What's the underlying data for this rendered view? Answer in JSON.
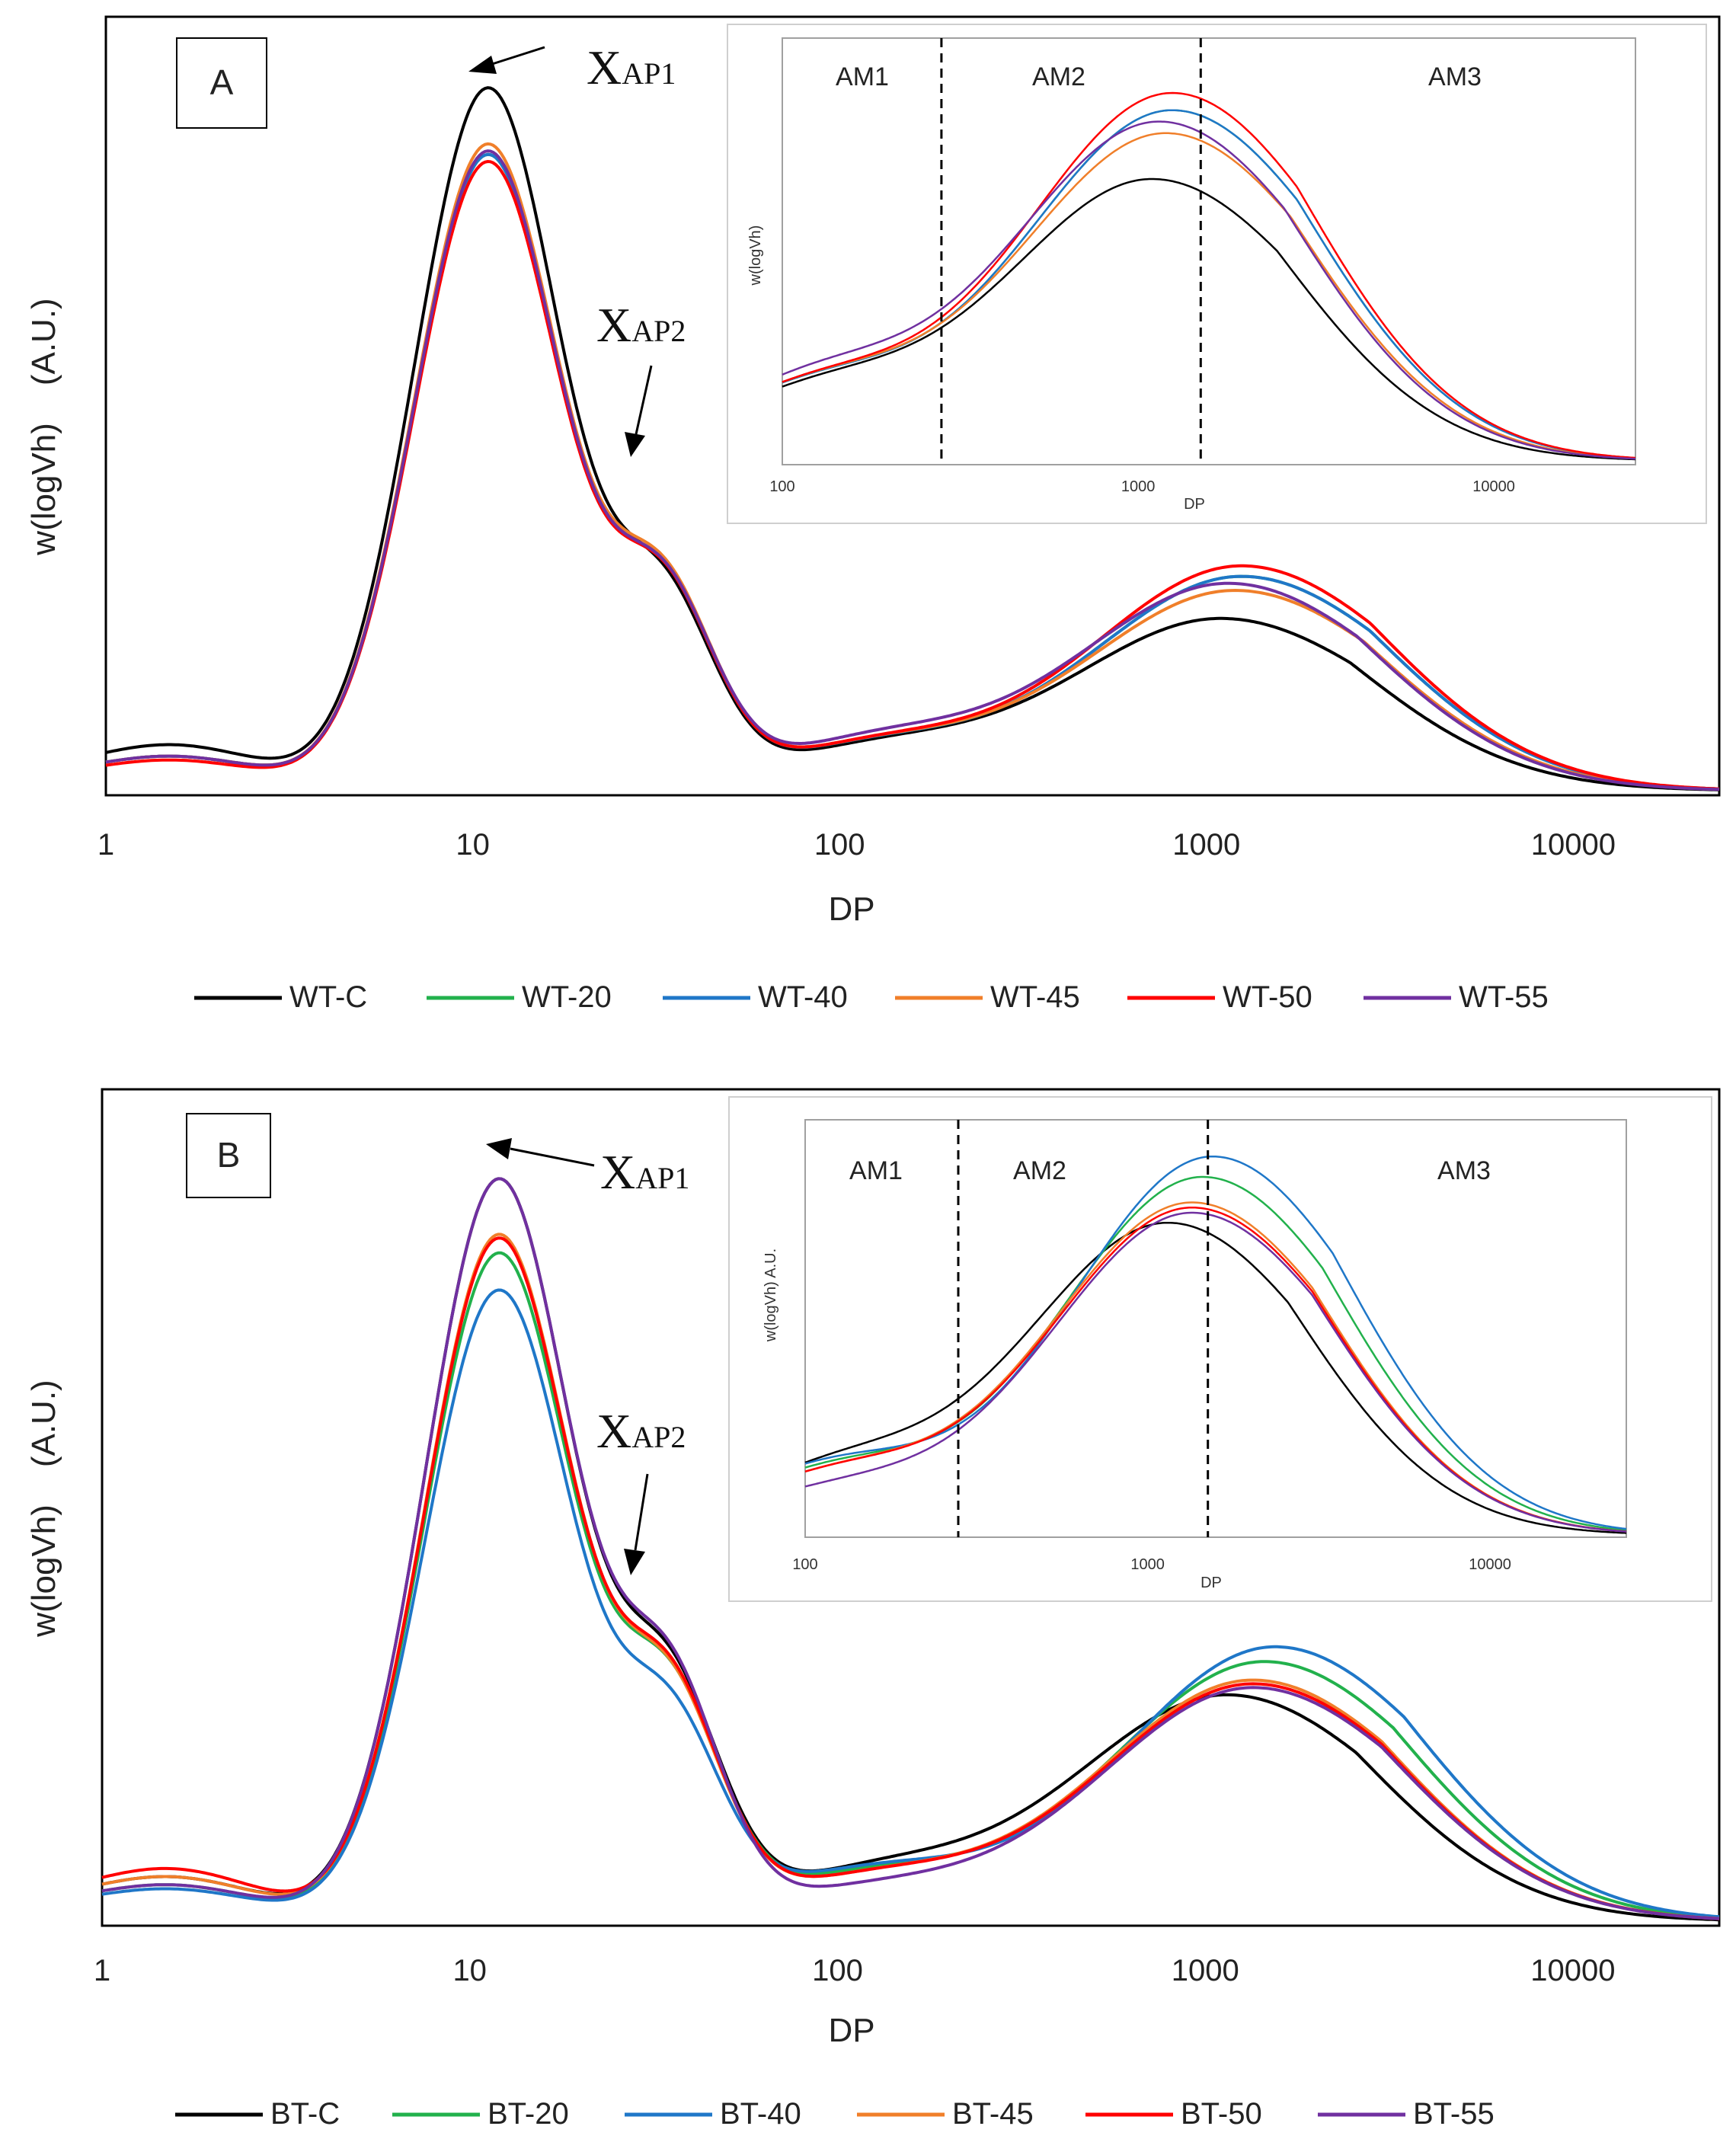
{
  "figure": {
    "panels": [
      {
        "id": "A",
        "panel_label": "A",
        "xlabel": "DP",
        "ylabel": "w(logVh)    (A.U.)",
        "annotations": [
          {
            "main": "X",
            "sub": "AP1"
          },
          {
            "main": "X",
            "sub": "AP2"
          }
        ],
        "legend": [
          "WT-C",
          "WT-20",
          "WT-40",
          "WT-45",
          "WT-50",
          "WT-55"
        ],
        "inset": {
          "xlabel": "DP",
          "ylabel": "w(logVh)",
          "x_ticks": [
            "100",
            "1000",
            "10000"
          ],
          "regions": [
            "AM1",
            "AM2",
            "AM3"
          ]
        }
      },
      {
        "id": "B",
        "panel_label": "B",
        "xlabel": "DP",
        "ylabel": "w(logVh)    (A.U.)",
        "annotations": [
          {
            "main": "X",
            "sub": "AP1"
          },
          {
            "main": "X",
            "sub": "AP2"
          }
        ],
        "legend": [
          "BT-C",
          "BT-20",
          "BT-40",
          "BT-45",
          "BT-50",
          "BT-55"
        ],
        "inset": {
          "xlabel": "DP",
          "ylabel": "w(logVh) A.U.",
          "x_ticks": [
            "100",
            "1000",
            "10000"
          ],
          "regions": [
            "AM1",
            "AM2",
            "AM3"
          ]
        }
      }
    ]
  },
  "chart_data": [
    {
      "type": "line",
      "title": "A",
      "xlabel": "DP",
      "ylabel": "w(logVh) (A.U.)",
      "xscale": "log",
      "xlim": [
        1,
        25000
      ],
      "ylim": [
        0,
        1.05
      ],
      "x_ticks": [
        "1",
        "10",
        "100",
        "1000",
        "10000"
      ],
      "legend_position": "bottom",
      "shape": {
        "ap1": {
          "center_dp": 11,
          "width_decades": 0.2
        },
        "ap2": {
          "center_dp": 33,
          "width_decades": 0.14
        },
        "low_plateau": {
          "center_dp": 1.5,
          "width_decades": 0.2
        },
        "mid": {
          "center_dp": 120,
          "width_decades": 0.3
        },
        "amylose": {
          "width_decades": 0.42,
          "right_skew_decades": 0.12
        }
      },
      "series": [
        {
          "name": "WT-C",
          "color": "#000000",
          "ap1_peak": 1.0,
          "ap2": 0.255,
          "plateau": 0.06,
          "mid": 0.055,
          "amylose_peak": 0.245,
          "amylose_center_dp": 1100
        },
        {
          "name": "WT-20",
          "color": "#22b14c",
          "ap1_peak": 0.905,
          "ap2": 0.265,
          "plateau": 0.045,
          "mid": 0.06,
          "amylose_peak": 0.305,
          "amylose_center_dp": 1250
        },
        {
          "name": "WT-40",
          "color": "#1f77c8",
          "ap1_peak": 0.905,
          "ap2": 0.265,
          "plateau": 0.045,
          "mid": 0.06,
          "amylose_peak": 0.305,
          "amylose_center_dp": 1250
        },
        {
          "name": "WT-45",
          "color": "#f07f2a",
          "ap1_peak": 0.92,
          "ap2": 0.27,
          "plateau": 0.045,
          "mid": 0.06,
          "amylose_peak": 0.285,
          "amylose_center_dp": 1200
        },
        {
          "name": "WT-50",
          "color": "#ff0000",
          "ap1_peak": 0.895,
          "ap2": 0.265,
          "plateau": 0.04,
          "mid": 0.06,
          "amylose_peak": 0.32,
          "amylose_center_dp": 1250
        },
        {
          "name": "WT-55",
          "color": "#7030a0",
          "ap1_peak": 0.91,
          "ap2": 0.265,
          "plateau": 0.045,
          "mid": 0.065,
          "amylose_peak": 0.295,
          "amylose_center_dp": 1150
        }
      ]
    },
    {
      "type": "line",
      "title": "B",
      "xlabel": "DP",
      "ylabel": "w(logVh) (A.U.)",
      "xscale": "log",
      "xlim": [
        1,
        25000
      ],
      "ylim": [
        0,
        1.05
      ],
      "x_ticks": [
        "1",
        "10",
        "100",
        "1000",
        "10000"
      ],
      "legend_position": "bottom",
      "shape": {
        "ap1": {
          "center_dp": 12,
          "width_decades": 0.2
        },
        "ap2": {
          "center_dp": 35,
          "width_decades": 0.14
        },
        "low_plateau": {
          "center_dp": 1.5,
          "width_decades": 0.2
        },
        "mid": {
          "center_dp": 120,
          "width_decades": 0.3
        },
        "amylose": {
          "width_decades": 0.42,
          "right_skew_decades": 0.12
        }
      },
      "series": [
        {
          "name": "BT-C",
          "color": "#000000",
          "ap1_peak": 1.0,
          "ap2": 0.29,
          "plateau": 0.055,
          "mid": 0.06,
          "amylose_peak": 0.305,
          "amylose_center_dp": 1150
        },
        {
          "name": "BT-20",
          "color": "#22b14c",
          "ap1_peak": 0.9,
          "ap2": 0.28,
          "plateau": 0.045,
          "mid": 0.06,
          "amylose_peak": 0.35,
          "amylose_center_dp": 1450
        },
        {
          "name": "BT-40",
          "color": "#1f77c8",
          "ap1_peak": 0.85,
          "ap2": 0.245,
          "plateau": 0.04,
          "mid": 0.065,
          "amylose_peak": 0.37,
          "amylose_center_dp": 1550
        },
        {
          "name": "BT-45",
          "color": "#f07f2a",
          "ap1_peak": 0.925,
          "ap2": 0.28,
          "plateau": 0.055,
          "mid": 0.055,
          "amylose_peak": 0.325,
          "amylose_center_dp": 1350
        },
        {
          "name": "BT-50",
          "color": "#ff0000",
          "ap1_peak": 0.92,
          "ap2": 0.285,
          "plateau": 0.065,
          "mid": 0.055,
          "amylose_peak": 0.32,
          "amylose_center_dp": 1350
        },
        {
          "name": "BT-55",
          "color": "#7030a0",
          "ap1_peak": 1.0,
          "ap2": 0.3,
          "plateau": 0.045,
          "mid": 0.04,
          "amylose_peak": 0.315,
          "amylose_center_dp": 1350
        }
      ]
    }
  ]
}
